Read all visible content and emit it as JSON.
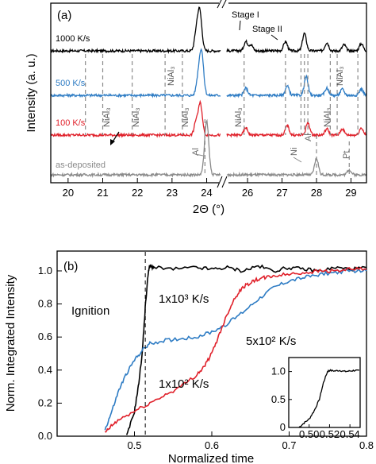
{
  "chart_data": [
    {
      "type": "line",
      "panel_label": "(a)",
      "xlabel": "2Θ (°)",
      "ylabel": "Intensity (a. u.)",
      "xlim_left": [
        19.5,
        24.4
      ],
      "xlim_right": [
        25.4,
        29.45
      ],
      "x_ticks": [
        20,
        21,
        22,
        23,
        24,
        26,
        27,
        28,
        29
      ],
      "x_tick_labels": [
        "20",
        "21",
        "22",
        "23",
        "24",
        "26",
        "27",
        "28",
        "29"
      ],
      "axis_break": "//",
      "series": [
        {
          "name": "1000 K/s",
          "color": "#000000",
          "offset": 3,
          "peaks": [
            [
              23.8,
              1.9
            ],
            [
              23.7,
              0.8
            ],
            [
              25.95,
              0.45
            ],
            [
              26.1,
              0.3
            ],
            [
              27.1,
              0.45
            ],
            [
              27.65,
              0.85
            ],
            [
              28.3,
              0.4
            ],
            [
              28.8,
              0.3
            ],
            [
              29.3,
              0.35
            ]
          ]
        },
        {
          "name": "500 K/s",
          "color": "#2e7cc4",
          "offset": 2,
          "peaks": [
            [
              23.85,
              2.1
            ],
            [
              23.75,
              0.7
            ],
            [
              25.95,
              0.35
            ],
            [
              27.15,
              0.45
            ],
            [
              27.7,
              0.9
            ],
            [
              28.3,
              0.35
            ],
            [
              28.75,
              0.3
            ],
            [
              29.3,
              0.3
            ]
          ]
        },
        {
          "name": "100 K/s",
          "color": "#e0202a",
          "offset": 1,
          "peaks": [
            [
              23.82,
              1.5
            ],
            [
              23.7,
              0.7
            ],
            [
              25.95,
              0.35
            ],
            [
              27.15,
              0.45
            ],
            [
              27.75,
              0.6
            ],
            [
              28.3,
              0.3
            ],
            [
              28.75,
              0.3
            ],
            [
              29.3,
              0.35
            ]
          ]
        },
        {
          "name": "as-deposited",
          "color": "#8a8a8a",
          "offset": 0,
          "peaks": [
            [
              24.0,
              2.6
            ],
            [
              28.0,
              0.8
            ],
            [
              28.95,
              0.25
            ]
          ]
        }
      ],
      "annotations": [
        "Stage I",
        "Stage II",
        "NiAl₃",
        "NiAl₃",
        "NiAl₃",
        "NiAl₃",
        "NiAl₃",
        "NiAl₃",
        "NiAl₃",
        "Al",
        "Ni",
        "Al",
        "Pt"
      ]
    },
    {
      "type": "line",
      "panel_label": "(b)",
      "xlabel": "Normalized time",
      "ylabel": "Norm. Integrated Intensity",
      "xlim": [
        0.4,
        0.8
      ],
      "ylim": [
        0,
        1.12
      ],
      "x_ticks": [
        0.5,
        0.6,
        0.7,
        0.8
      ],
      "x_tick_labels": [
        "0.5",
        "0.6",
        "0.7",
        "0.8"
      ],
      "y_ticks": [
        0,
        0.2,
        0.4,
        0.6,
        0.8,
        1.0
      ],
      "y_tick_labels": [
        "0.0",
        "0.2",
        "0.4",
        "0.6",
        "0.8",
        "1.0"
      ],
      "ignition_x": 0.514,
      "ignition_label": "Ignition",
      "series": [
        {
          "name": "1x10³ K/s",
          "color": "#000000",
          "x": [
            0.49,
            0.5,
            0.505,
            0.51,
            0.514,
            0.518,
            0.52,
            0.525,
            0.55,
            0.58,
            0.6,
            0.62,
            0.64,
            0.66,
            0.68,
            0.7,
            0.72,
            0.74,
            0.76,
            0.78,
            0.8
          ],
          "y": [
            0.0,
            0.15,
            0.3,
            0.5,
            0.78,
            1.0,
            1.03,
            1.02,
            1.01,
            1.02,
            1.01,
            1.02,
            1.0,
            1.03,
            1.0,
            1.02,
            1.01,
            1.0,
            1.02,
            1.01,
            1.02
          ]
        },
        {
          "name": "5x10² K/s",
          "color": "#2e7cc4",
          "x": [
            0.462,
            0.47,
            0.48,
            0.49,
            0.5,
            0.51,
            0.52,
            0.54,
            0.56,
            0.58,
            0.6,
            0.62,
            0.64,
            0.66,
            0.68,
            0.7,
            0.72,
            0.74,
            0.76,
            0.78,
            0.8
          ],
          "y": [
            0.04,
            0.14,
            0.28,
            0.38,
            0.46,
            0.52,
            0.56,
            0.58,
            0.59,
            0.6,
            0.63,
            0.68,
            0.75,
            0.83,
            0.9,
            0.94,
            0.96,
            0.98,
            0.99,
            1.0,
            1.0
          ]
        },
        {
          "name": "1x10² K/s",
          "color": "#e0202a",
          "x": [
            0.462,
            0.47,
            0.48,
            0.5,
            0.52,
            0.54,
            0.56,
            0.58,
            0.59,
            0.6,
            0.61,
            0.62,
            0.63,
            0.64,
            0.65,
            0.66,
            0.67,
            0.68,
            0.7,
            0.72,
            0.74,
            0.76,
            0.78,
            0.8
          ],
          "y": [
            0.02,
            0.06,
            0.1,
            0.15,
            0.2,
            0.25,
            0.3,
            0.37,
            0.42,
            0.5,
            0.62,
            0.74,
            0.84,
            0.9,
            0.93,
            0.95,
            0.96,
            0.97,
            0.98,
            0.99,
            1.0,
            1.0,
            1.01,
            1.01
          ]
        }
      ],
      "inset": {
        "xlim": [
          0.48,
          0.55
        ],
        "ylim": [
          0,
          1.25
        ],
        "x_tick_labels": [
          "0.50",
          "0.52",
          "0.54"
        ],
        "x_ticks": [
          0.5,
          0.52,
          0.54
        ],
        "y_tick_labels": [
          "0",
          "0.5",
          "1.0"
        ],
        "y_ticks": [
          0,
          0.5,
          1.0
        ],
        "series": {
          "color": "#000000",
          "x": [
            0.49,
            0.495,
            0.5,
            0.505,
            0.51,
            0.514,
            0.518,
            0.52,
            0.525,
            0.53,
            0.535,
            0.54,
            0.545,
            0.55
          ],
          "y": [
            0.0,
            0.08,
            0.15,
            0.3,
            0.5,
            0.8,
            1.0,
            1.02,
            1.01,
            1.02,
            1.0,
            1.01,
            1.02,
            1.01
          ]
        }
      }
    }
  ]
}
